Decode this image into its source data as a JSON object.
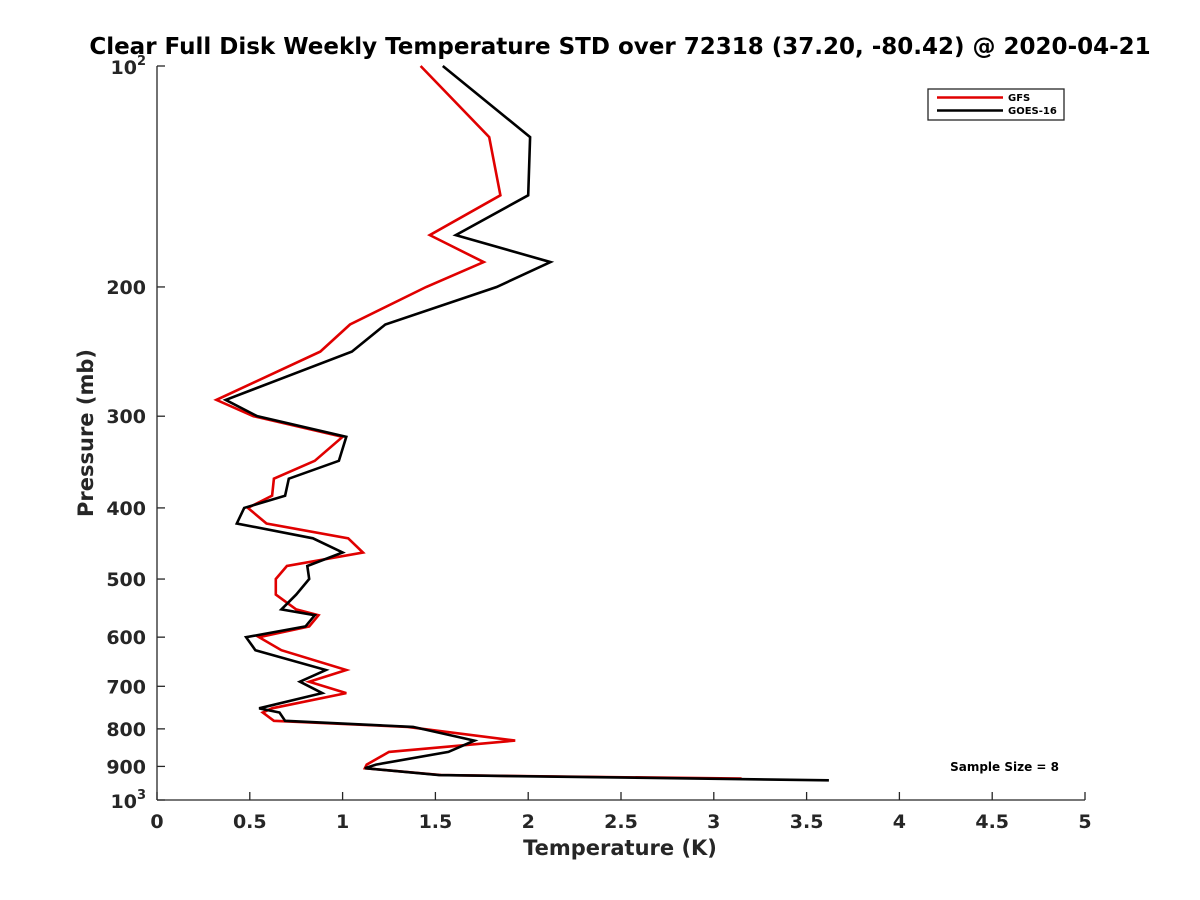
{
  "chart_data": {
    "type": "line",
    "title": "Clear Full Disk Weekly Temperature STD over 72318 (37.20, -80.42) @ 2020-04-21",
    "xlabel": "Temperature (K)",
    "ylabel": "Pressure (mb)",
    "xlim": [
      0,
      5
    ],
    "ylim": [
      100,
      1000
    ],
    "y_scale": "log",
    "y_reversed": true,
    "grid": false,
    "legend_position": "top-right",
    "x_ticks": [
      {
        "value": 0,
        "label": "0"
      },
      {
        "value": 0.5,
        "label": "0.5"
      },
      {
        "value": 1,
        "label": "1"
      },
      {
        "value": 1.5,
        "label": "1.5"
      },
      {
        "value": 2,
        "label": "2"
      },
      {
        "value": 2.5,
        "label": "2.5"
      },
      {
        "value": 3,
        "label": "3"
      },
      {
        "value": 3.5,
        "label": "3.5"
      },
      {
        "value": 4,
        "label": "4"
      },
      {
        "value": 4.5,
        "label": "4.5"
      },
      {
        "value": 5,
        "label": "5"
      }
    ],
    "y_ticks": [
      {
        "value": 100,
        "base": "10",
        "exp": "2"
      },
      {
        "value": 200,
        "label": "200"
      },
      {
        "value": 300,
        "label": "300"
      },
      {
        "value": 400,
        "label": "400"
      },
      {
        "value": 500,
        "label": "500"
      },
      {
        "value": 600,
        "label": "600"
      },
      {
        "value": 700,
        "label": "700"
      },
      {
        "value": 800,
        "label": "800"
      },
      {
        "value": 900,
        "label": "900"
      },
      {
        "value": 1000,
        "base": "10",
        "exp": "3"
      }
    ],
    "annotation": "Sample Size = 8",
    "series": [
      {
        "name": "GFS",
        "color": "#e00000",
        "points": [
          [
            1.42,
            100
          ],
          [
            1.79,
            125
          ],
          [
            1.85,
            150
          ],
          [
            1.47,
            170
          ],
          [
            1.76,
            185
          ],
          [
            1.45,
            200
          ],
          [
            1.04,
            225
          ],
          [
            0.88,
            245
          ],
          [
            0.32,
            285
          ],
          [
            0.52,
            300
          ],
          [
            1.0,
            320
          ],
          [
            0.85,
            345
          ],
          [
            0.63,
            365
          ],
          [
            0.62,
            385
          ],
          [
            0.49,
            400
          ],
          [
            0.59,
            420
          ],
          [
            1.03,
            440
          ],
          [
            1.11,
            460
          ],
          [
            0.7,
            480
          ],
          [
            0.64,
            500
          ],
          [
            0.64,
            525
          ],
          [
            0.75,
            550
          ],
          [
            0.87,
            560
          ],
          [
            0.82,
            580
          ],
          [
            0.55,
            600
          ],
          [
            0.67,
            625
          ],
          [
            1.02,
            665
          ],
          [
            0.82,
            690
          ],
          [
            1.02,
            715
          ],
          [
            0.62,
            750
          ],
          [
            0.57,
            760
          ],
          [
            0.63,
            780
          ],
          [
            1.35,
            795
          ],
          [
            1.93,
            830
          ],
          [
            1.25,
            860
          ],
          [
            1.13,
            895
          ],
          [
            1.12,
            905
          ],
          [
            1.53,
            925
          ],
          [
            3.15,
            935
          ]
        ]
      },
      {
        "name": "GOES-16",
        "color": "#000000",
        "points": [
          [
            1.54,
            100
          ],
          [
            2.01,
            125
          ],
          [
            2.0,
            150
          ],
          [
            1.61,
            170
          ],
          [
            2.12,
            185
          ],
          [
            1.83,
            200
          ],
          [
            1.23,
            225
          ],
          [
            1.05,
            245
          ],
          [
            0.37,
            285
          ],
          [
            0.54,
            300
          ],
          [
            1.02,
            320
          ],
          [
            0.98,
            345
          ],
          [
            0.71,
            365
          ],
          [
            0.69,
            385
          ],
          [
            0.47,
            400
          ],
          [
            0.43,
            420
          ],
          [
            0.84,
            440
          ],
          [
            1.0,
            460
          ],
          [
            0.81,
            480
          ],
          [
            0.82,
            500
          ],
          [
            0.75,
            525
          ],
          [
            0.67,
            550
          ],
          [
            0.85,
            560
          ],
          [
            0.8,
            580
          ],
          [
            0.48,
            600
          ],
          [
            0.53,
            625
          ],
          [
            0.91,
            665
          ],
          [
            0.77,
            690
          ],
          [
            0.89,
            715
          ],
          [
            0.55,
            750
          ],
          [
            0.66,
            760
          ],
          [
            0.69,
            780
          ],
          [
            1.38,
            795
          ],
          [
            1.71,
            830
          ],
          [
            1.57,
            860
          ],
          [
            1.18,
            895
          ],
          [
            1.12,
            905
          ],
          [
            1.52,
            925
          ],
          [
            3.62,
            940
          ]
        ]
      }
    ]
  }
}
